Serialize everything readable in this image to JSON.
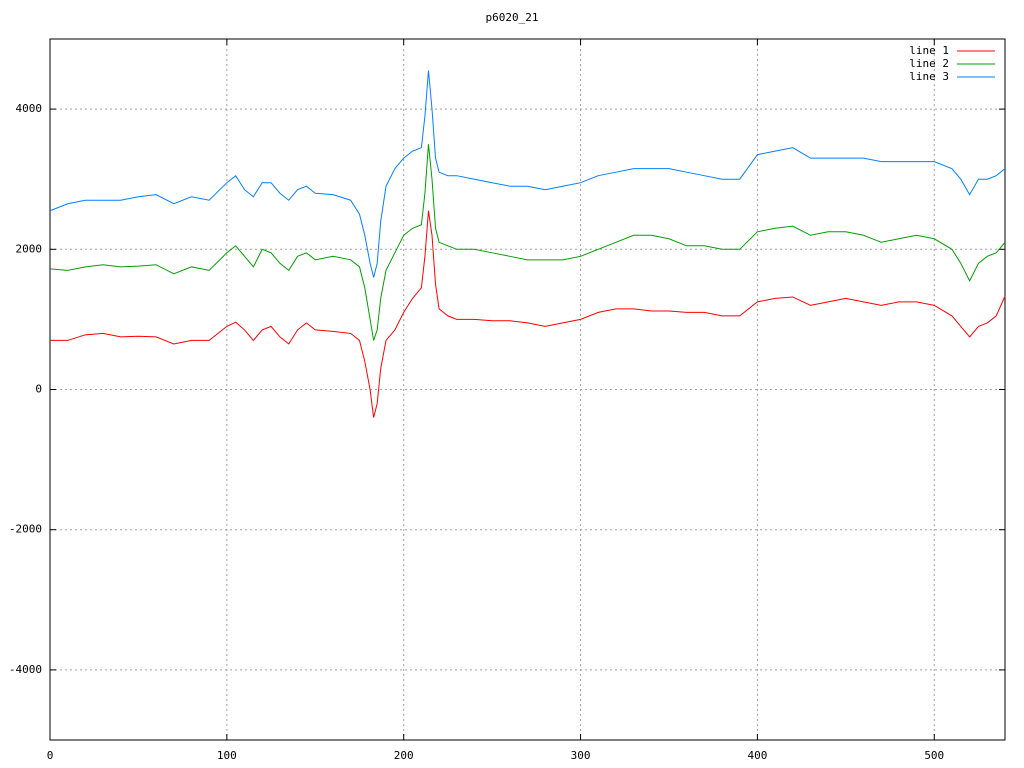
{
  "chart_data": {
    "type": "line",
    "title": "p6020_21",
    "x": [
      0,
      10,
      20,
      30,
      40,
      50,
      60,
      70,
      80,
      90,
      100,
      105,
      110,
      115,
      120,
      125,
      130,
      135,
      140,
      145,
      150,
      160,
      170,
      175,
      178,
      181,
      183,
      185,
      187,
      190,
      195,
      200,
      205,
      210,
      212,
      214,
      216,
      218,
      220,
      225,
      230,
      240,
      250,
      260,
      270,
      280,
      290,
      300,
      310,
      320,
      330,
      340,
      350,
      360,
      370,
      380,
      390,
      400,
      410,
      420,
      430,
      440,
      450,
      460,
      470,
      480,
      490,
      500,
      510,
      515,
      520,
      525,
      530,
      535,
      540
    ],
    "series": [
      {
        "name": "line 1",
        "color": "#ff0000",
        "values": [
          700,
          700,
          780,
          800,
          750,
          760,
          750,
          650,
          700,
          700,
          900,
          960,
          850,
          700,
          850,
          900,
          750,
          650,
          850,
          950,
          850,
          830,
          800,
          700,
          400,
          0,
          -400,
          -200,
          300,
          700,
          850,
          1100,
          1300,
          1450,
          1900,
          2550,
          2200,
          1500,
          1150,
          1050,
          1000,
          1000,
          980,
          980,
          950,
          900,
          950,
          1000,
          1100,
          1150,
          1150,
          1120,
          1120,
          1100,
          1100,
          1050,
          1050,
          1250,
          1300,
          1320,
          1200,
          1250,
          1300,
          1250,
          1200,
          1250,
          1250,
          1200,
          1050,
          900,
          750,
          900,
          950,
          1050,
          1330
        ]
      },
      {
        "name": "line 2",
        "color": "#00a000",
        "values": [
          1720,
          1700,
          1750,
          1780,
          1750,
          1760,
          1780,
          1650,
          1750,
          1700,
          1950,
          2050,
          1900,
          1750,
          2000,
          1950,
          1800,
          1700,
          1900,
          1950,
          1850,
          1900,
          1850,
          1750,
          1450,
          1000,
          700,
          850,
          1300,
          1700,
          1950,
          2200,
          2300,
          2350,
          2800,
          3500,
          3000,
          2300,
          2100,
          2050,
          2000,
          2000,
          1950,
          1900,
          1850,
          1850,
          1850,
          1900,
          2000,
          2100,
          2200,
          2200,
          2150,
          2050,
          2050,
          2000,
          2000,
          2250,
          2300,
          2330,
          2200,
          2250,
          2250,
          2200,
          2100,
          2150,
          2200,
          2150,
          2000,
          1800,
          1550,
          1800,
          1900,
          1950,
          2100
        ]
      },
      {
        "name": "line 3",
        "color": "#0080ff",
        "values": [
          2550,
          2650,
          2700,
          2700,
          2700,
          2750,
          2780,
          2650,
          2750,
          2700,
          2950,
          3050,
          2850,
          2750,
          2950,
          2950,
          2800,
          2700,
          2850,
          2900,
          2800,
          2780,
          2700,
          2500,
          2200,
          1800,
          1600,
          1800,
          2400,
          2900,
          3150,
          3300,
          3400,
          3450,
          3900,
          4550,
          4000,
          3300,
          3100,
          3050,
          3050,
          3000,
          2950,
          2900,
          2900,
          2850,
          2900,
          2950,
          3050,
          3100,
          3150,
          3150,
          3150,
          3100,
          3050,
          3000,
          3000,
          3350,
          3400,
          3450,
          3300,
          3300,
          3300,
          3300,
          3250,
          3250,
          3250,
          3250,
          3150,
          3000,
          2780,
          3000,
          3000,
          3050,
          3150
        ]
      }
    ],
    "xlim": [
      0,
      540
    ],
    "ylim": [
      -5000,
      5000
    ],
    "xticks": [
      0,
      100,
      200,
      300,
      400,
      500
    ],
    "yticks": [
      -4000,
      -2000,
      0,
      2000,
      4000
    ],
    "grid": true,
    "legend": "upper right"
  }
}
